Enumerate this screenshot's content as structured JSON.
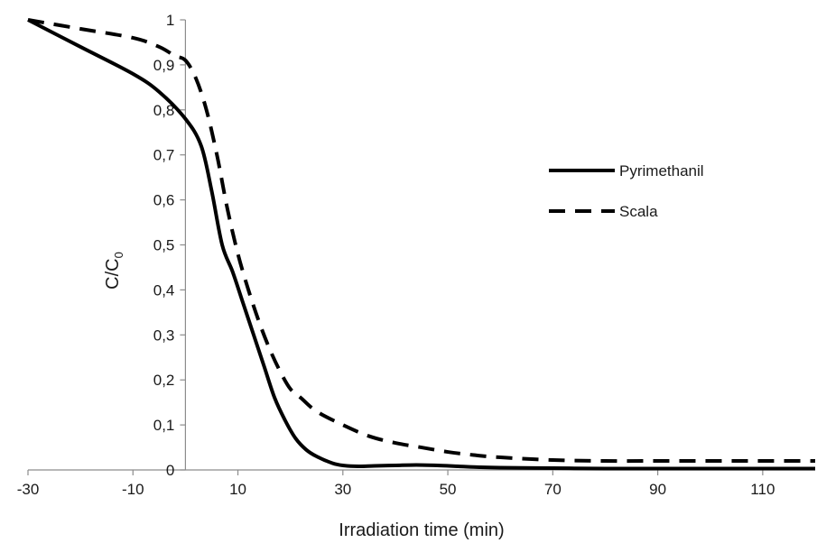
{
  "chart_data": {
    "type": "line",
    "xlabel": "Irradiation time (min)",
    "ylabel_main": "C/C",
    "ylabel_sub": "0",
    "xlim": [
      -30,
      120
    ],
    "ylim": [
      0,
      1
    ],
    "x_ticks": [
      -30,
      -10,
      10,
      30,
      50,
      70,
      90,
      110
    ],
    "y_ticks": [
      0,
      0.1,
      0.2,
      0.3,
      0.4,
      0.5,
      0.6,
      0.7,
      0.8,
      0.9,
      1
    ],
    "y_tick_labels": [
      "0",
      "0,1",
      "0,2",
      "0,3",
      "0,4",
      "0,5",
      "0,6",
      "0,7",
      "0,8",
      "0,9",
      "1"
    ],
    "x_tick_labels": [
      "-30",
      "-10",
      "10",
      "30",
      "50",
      "70",
      "90",
      "110"
    ],
    "grid": false,
    "legend_position": "right",
    "series": [
      {
        "name": "Pyrimethanil",
        "style": "solid",
        "color": "#000000",
        "x": [
          -30,
          -20,
          -10,
          -5,
          0,
          3,
          5,
          7,
          9,
          11,
          13,
          15,
          17,
          19,
          21,
          23,
          25,
          28,
          30,
          33,
          36,
          40,
          44,
          48,
          52,
          56,
          60,
          70,
          80,
          90,
          100,
          110,
          120
        ],
        "y": [
          1.0,
          0.94,
          0.88,
          0.84,
          0.78,
          0.72,
          0.62,
          0.5,
          0.44,
          0.37,
          0.3,
          0.23,
          0.16,
          0.11,
          0.07,
          0.045,
          0.03,
          0.015,
          0.01,
          0.008,
          0.009,
          0.01,
          0.011,
          0.01,
          0.008,
          0.006,
          0.005,
          0.004,
          0.003,
          0.003,
          0.003,
          0.003,
          0.003
        ]
      },
      {
        "name": "Scala",
        "style": "dashed",
        "color": "#000000",
        "x": [
          -30,
          -20,
          -10,
          -5,
          -2,
          0,
          2,
          4,
          6,
          8,
          10,
          12,
          14,
          16,
          18,
          20,
          22,
          25,
          30,
          35,
          40,
          45,
          50,
          55,
          60,
          70,
          80,
          90,
          100,
          110,
          120
        ],
        "y": [
          1.0,
          0.98,
          0.96,
          0.94,
          0.92,
          0.91,
          0.87,
          0.8,
          0.7,
          0.58,
          0.48,
          0.4,
          0.33,
          0.27,
          0.22,
          0.18,
          0.16,
          0.13,
          0.1,
          0.075,
          0.06,
          0.05,
          0.04,
          0.033,
          0.028,
          0.022,
          0.02,
          0.02,
          0.02,
          0.02,
          0.02
        ]
      }
    ]
  }
}
